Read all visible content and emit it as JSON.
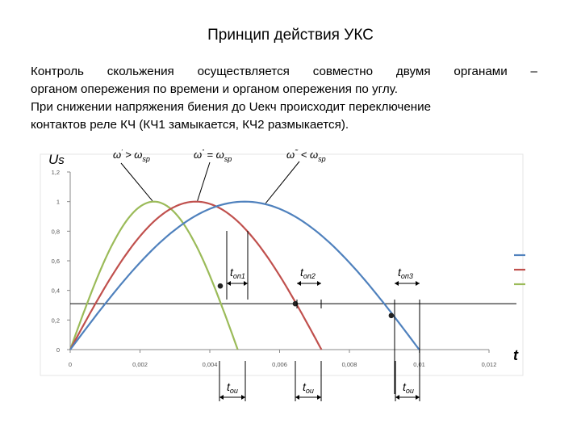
{
  "slide": {
    "title": "Принцип действия УКС",
    "paragraph_lines": [
      "Контроль скольжения осуществляется совместно двумя органами –",
      "органом опережения по времени и органом опережения по углу.",
      "При снижении напряжения биения до Uекч происходит переключение",
      "контактов реле КЧ (КЧ1 замыкается, КЧ2 размыкается)."
    ]
  },
  "chart_data": {
    "type": "line",
    "ylabel": "Us",
    "xlabel": "t",
    "xlim": [
      0,
      0.012
    ],
    "ylim": [
      0,
      1.2
    ],
    "x_ticks": [
      "0",
      "0,002",
      "0,004",
      "0,006",
      "0,008",
      "0,01",
      "0,012"
    ],
    "y_ticks": [
      "0",
      "0,2",
      "0,4",
      "0,6",
      "0,8",
      "1",
      "1,2"
    ],
    "grid": false,
    "threshold_y": 0.31,
    "series": [
      {
        "key": "green",
        "color": "#9bbb59",
        "period": 0.0048
      },
      {
        "key": "red",
        "color": "#c0504d",
        "period": 0.0072
      },
      {
        "key": "blue",
        "color": "#4f81bd",
        "period": 0.01
      }
    ],
    "curve_labels": [
      {
        "base": "ω",
        "sup": "'",
        "op": " > ",
        "rhs": "ω",
        "sub": "sp"
      },
      {
        "base": "ω",
        "sup": "''",
        "op": " = ",
        "rhs": "ω",
        "sub": "sp"
      },
      {
        "base": "ω",
        "sup": "'''",
        "op": " < ",
        "rhs": "ω",
        "sub": "sp"
      }
    ],
    "markers": [
      {
        "series": "green",
        "x": 0.0043,
        "y": 0.43
      },
      {
        "series": "red",
        "x": 0.00645,
        "y": 0.31
      },
      {
        "series": "blue",
        "x": 0.0092,
        "y": 0.23
      }
    ],
    "time_labels": {
      "top": [
        {
          "base": "t",
          "sub": "оп1"
        },
        {
          "base": "t",
          "sub": "оп2"
        },
        {
          "base": "t",
          "sub": "оп3"
        }
      ],
      "bottom": [
        {
          "base": "t",
          "sub": "ои"
        },
        {
          "base": "t",
          "sub": "ои"
        },
        {
          "base": "t",
          "sub": "ои"
        }
      ]
    },
    "legend_colors": [
      "#4f81bd",
      "#c0504d",
      "#9bbb59"
    ],
    "marker_color": "#222222",
    "axis_color": "#888888",
    "threshold_color": "#000000"
  }
}
